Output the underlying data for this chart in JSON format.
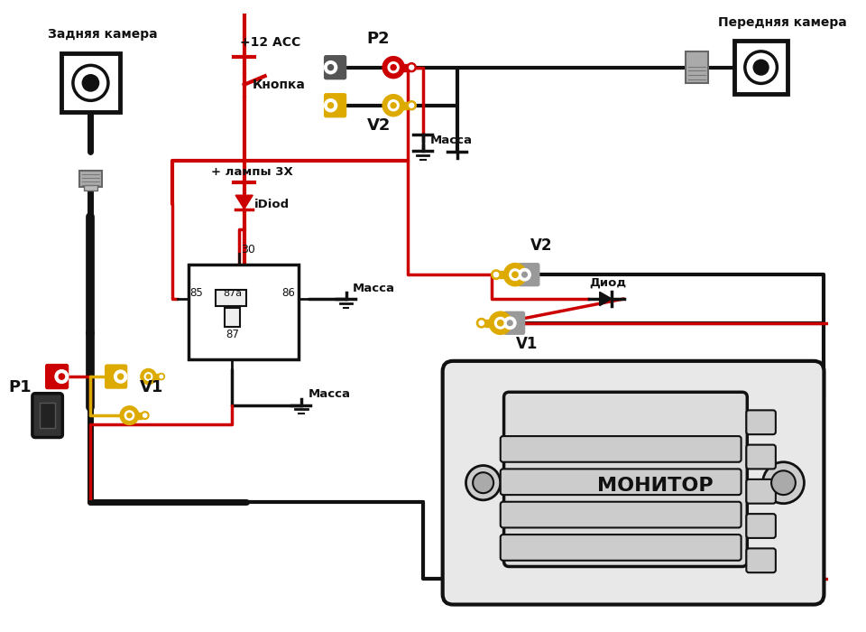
{
  "bg_color": "#ffffff",
  "rear_camera_label": "Задняя камера",
  "front_camera_label": "Передняя камера",
  "p1_label": "P1",
  "p2_label": "P2",
  "v1_label": "V1",
  "v2_label": "V2",
  "plus12acc_label": "+12 ACC",
  "knopka_label": "Кнопка",
  "lampy_label": "+ лампы 3Х",
  "idiod_label": "iDiod",
  "massa_label": "Масса",
  "diod_label": "Диод",
  "monitor_label": "МОНИТОР",
  "wire_red": "#cc0000",
  "wire_black": "#111111",
  "wire_yellow": "#ddaa00",
  "conn_gray": "#999999",
  "conn_lgray": "#cccccc",
  "conn_dgray": "#555555",
  "white": "#ffffff"
}
